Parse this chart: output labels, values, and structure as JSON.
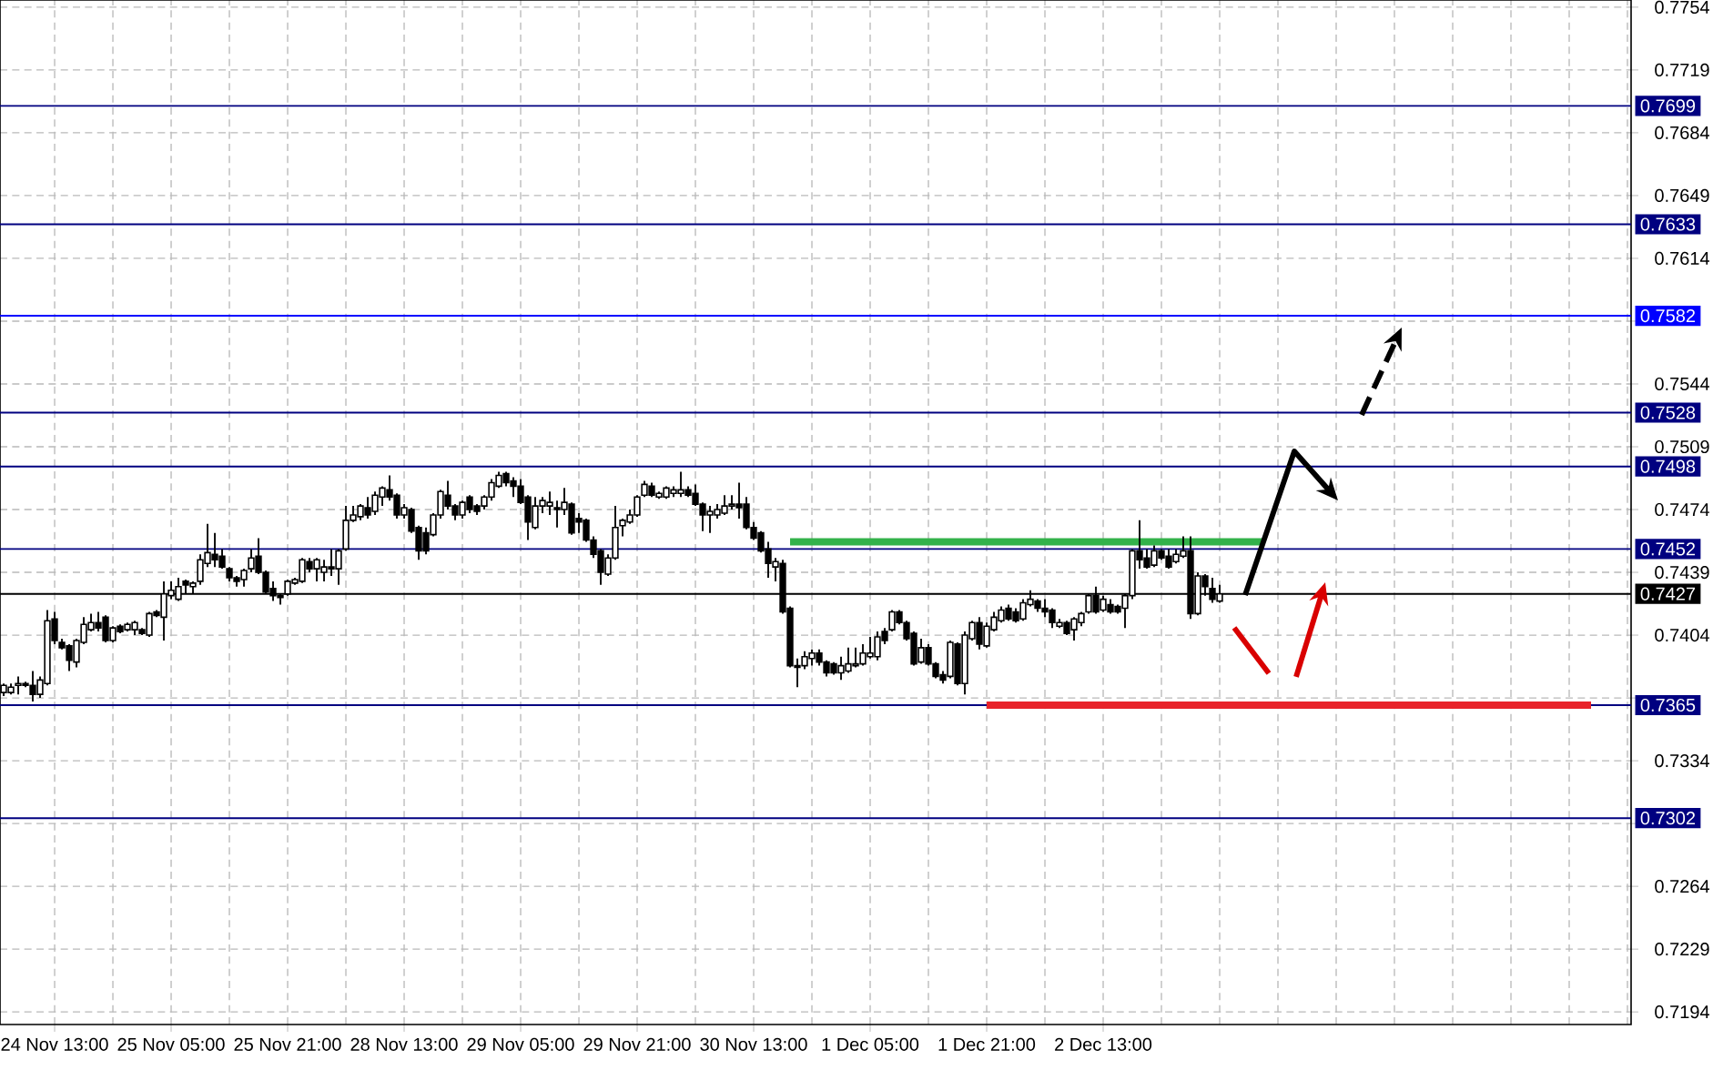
{
  "chart_data": {
    "type": "candlestick",
    "categories": [
      null,
      null,
      null,
      null,
      null,
      null,
      null,
      "24 Nov 13:00",
      null,
      null,
      null,
      null,
      null,
      null,
      null,
      null,
      null,
      null,
      null,
      null,
      null,
      null,
      null,
      "25 Nov 05:00",
      null,
      null,
      null,
      null,
      null,
      null,
      null,
      null,
      null,
      null,
      null,
      null,
      null,
      null,
      null,
      "25 Nov 21:00",
      null,
      null,
      null,
      null,
      null,
      null,
      null,
      null,
      null,
      null,
      null,
      null,
      null,
      null,
      null,
      "28 Nov 13:00",
      null,
      null,
      null,
      null,
      null,
      null,
      null,
      null,
      null,
      null,
      null,
      null,
      null,
      null,
      null,
      "29 Nov 05:00",
      null,
      null,
      null,
      null,
      null,
      null,
      null,
      null,
      null,
      null,
      null,
      null,
      null,
      null,
      null,
      "29 Nov 21:00",
      null,
      null,
      null,
      null,
      null,
      null,
      null,
      null,
      null,
      null,
      null,
      null,
      null,
      null,
      null,
      "30 Nov 13:00",
      null,
      null,
      null,
      null,
      null,
      null,
      null,
      null,
      null,
      null,
      null,
      null,
      null,
      null,
      null,
      "1 Dec 05:00",
      null,
      null,
      null,
      null,
      null,
      null,
      null,
      null,
      null,
      null,
      null,
      null,
      null,
      null,
      null,
      "1 Dec 21:00",
      null,
      null,
      null,
      null,
      null,
      null,
      null,
      null,
      null,
      null,
      null,
      null,
      null,
      null,
      null,
      "2 Dec 13:00",
      null,
      null,
      null,
      null,
      null,
      null,
      null,
      null,
      null,
      null,
      null,
      null,
      null,
      null,
      null,
      null,
      null,
      null,
      null,
      null,
      null,
      null,
      null,
      null,
      null,
      null,
      null,
      null,
      null,
      null,
      null,
      null,
      null,
      null,
      null,
      null,
      null,
      null,
      null,
      null,
      null,
      null,
      null,
      null,
      null,
      null,
      null,
      null,
      null,
      null,
      null,
      null,
      null,
      null,
      null,
      null,
      null,
      null,
      null,
      null,
      null,
      null,
      null,
      null,
      null,
      null,
      null,
      null,
      null,
      null,
      null,
      null
    ],
    "ohlc": [
      [
        0.7372,
        0.7377,
        0.737,
        0.7376
      ],
      [
        0.7372,
        0.7377,
        0.7371,
        0.7375
      ],
      [
        0.7376,
        0.7381,
        0.7371,
        0.7377
      ],
      [
        0.7377,
        0.7378,
        0.7375,
        0.7376
      ],
      [
        0.7376,
        0.7384,
        0.7367,
        0.7371
      ],
      [
        0.7371,
        0.7381,
        0.7369,
        0.7379
      ],
      [
        0.7377,
        0.7418,
        0.7376,
        0.7412
      ],
      [
        0.7413,
        0.7417,
        0.7399,
        0.7401
      ],
      [
        0.74,
        0.7402,
        0.7396,
        0.7397
      ],
      [
        0.7398,
        0.7399,
        0.7384,
        0.739
      ],
      [
        0.7389,
        0.7402,
        0.7386,
        0.7401
      ],
      [
        0.74,
        0.7414,
        0.7399,
        0.741
      ],
      [
        0.7407,
        0.7416,
        0.7406,
        0.7411
      ],
      [
        0.7411,
        0.7417,
        0.7406,
        0.7408
      ],
      [
        0.7414,
        0.7415,
        0.74,
        0.7401
      ],
      [
        0.7401,
        0.7409,
        0.74,
        0.7408
      ],
      [
        0.7409,
        0.741,
        0.7405,
        0.7406
      ],
      [
        0.7407,
        0.7411,
        0.7406,
        0.741
      ],
      [
        0.7407,
        0.7412,
        0.7404,
        0.7411
      ],
      [
        0.7407,
        0.7408,
        0.7404,
        0.7405
      ],
      [
        0.7404,
        0.7417,
        0.7403,
        0.7416
      ],
      [
        0.7417,
        0.7418,
        0.7414,
        0.7415
      ],
      [
        0.7414,
        0.7434,
        0.7401,
        0.7427
      ],
      [
        0.7426,
        0.7434,
        0.7424,
        0.7429
      ],
      [
        0.7424,
        0.7436,
        0.7423,
        0.7431
      ],
      [
        0.7434,
        0.7435,
        0.7427,
        0.7432
      ],
      [
        0.7431,
        0.7434,
        0.7427,
        0.7433
      ],
      [
        0.7434,
        0.7449,
        0.7432,
        0.7446
      ],
      [
        0.7444,
        0.7466,
        0.7442,
        0.745
      ],
      [
        0.7449,
        0.7461,
        0.7442,
        0.7446
      ],
      [
        0.7448,
        0.7452,
        0.7441,
        0.7442
      ],
      [
        0.7441,
        0.7442,
        0.7434,
        0.7436
      ],
      [
        0.7436,
        0.7437,
        0.7431,
        0.7434
      ],
      [
        0.7435,
        0.7441,
        0.7431,
        0.744
      ],
      [
        0.7441,
        0.7452,
        0.7439,
        0.7447
      ],
      [
        0.7448,
        0.7458,
        0.7438,
        0.7439
      ],
      [
        0.7439,
        0.744,
        0.7427,
        0.7428
      ],
      [
        0.743,
        0.7434,
        0.7423,
        0.7426
      ],
      [
        0.7426,
        0.7427,
        0.7421,
        0.7425
      ],
      [
        0.7427,
        0.7435,
        0.7426,
        0.7434
      ],
      [
        0.7433,
        0.7436,
        0.7432,
        0.7435
      ],
      [
        0.7434,
        0.7447,
        0.7433,
        0.7446
      ],
      [
        0.7445,
        0.7447,
        0.7439,
        0.7441
      ],
      [
        0.7441,
        0.7447,
        0.7434,
        0.7446
      ],
      [
        0.7439,
        0.7446,
        0.7434,
        0.7442
      ],
      [
        0.7442,
        0.7452,
        0.7437,
        0.7441
      ],
      [
        0.7441,
        0.7452,
        0.7432,
        0.7451
      ],
      [
        0.7452,
        0.7476,
        0.7451,
        0.7468
      ],
      [
        0.7468,
        0.7476,
        0.7467,
        0.7471
      ],
      [
        0.747,
        0.7477,
        0.7468,
        0.7476
      ],
      [
        0.7475,
        0.7481,
        0.7469,
        0.7471
      ],
      [
        0.7473,
        0.7484,
        0.7471,
        0.7482
      ],
      [
        0.7481,
        0.7487,
        0.7476,
        0.7486
      ],
      [
        0.7485,
        0.7493,
        0.7479,
        0.7481
      ],
      [
        0.7482,
        0.7483,
        0.7469,
        0.7471
      ],
      [
        0.7471,
        0.7477,
        0.7469,
        0.7475
      ],
      [
        0.7474,
        0.7475,
        0.7461,
        0.7462
      ],
      [
        0.7464,
        0.7465,
        0.7446,
        0.7451
      ],
      [
        0.7461,
        0.7464,
        0.7449,
        0.7451
      ],
      [
        0.746,
        0.7472,
        0.7459,
        0.7471
      ],
      [
        0.7471,
        0.7485,
        0.7469,
        0.7484
      ],
      [
        0.7482,
        0.749,
        0.7474,
        0.7476
      ],
      [
        0.7476,
        0.7477,
        0.7468,
        0.7471
      ],
      [
        0.7471,
        0.7479,
        0.7469,
        0.7478
      ],
      [
        0.7481,
        0.7482,
        0.7472,
        0.7474
      ],
      [
        0.7476,
        0.7477,
        0.7471,
        0.7473
      ],
      [
        0.7476,
        0.7482,
        0.7474,
        0.7481
      ],
      [
        0.7481,
        0.7491,
        0.7479,
        0.7489
      ],
      [
        0.7487,
        0.7495,
        0.7486,
        0.7493
      ],
      [
        0.7494,
        0.7495,
        0.7487,
        0.7489
      ],
      [
        0.749,
        0.7492,
        0.7481,
        0.7487
      ],
      [
        0.7487,
        0.7491,
        0.7477,
        0.7478
      ],
      [
        0.7481,
        0.7482,
        0.7457,
        0.7467
      ],
      [
        0.7464,
        0.7481,
        0.7463,
        0.7476
      ],
      [
        0.7476,
        0.7481,
        0.7472,
        0.7479
      ],
      [
        0.7476,
        0.7484,
        0.7471,
        0.7478
      ],
      [
        0.7475,
        0.7479,
        0.7464,
        0.7474
      ],
      [
        0.7474,
        0.7486,
        0.7471,
        0.7478
      ],
      [
        0.7477,
        0.7478,
        0.746,
        0.7461
      ],
      [
        0.7469,
        0.7472,
        0.7461,
        0.7467
      ],
      [
        0.7468,
        0.7469,
        0.7456,
        0.7457
      ],
      [
        0.7457,
        0.7459,
        0.7447,
        0.7449
      ],
      [
        0.7451,
        0.7452,
        0.7432,
        0.7439
      ],
      [
        0.7438,
        0.7449,
        0.7437,
        0.7447
      ],
      [
        0.7447,
        0.7476,
        0.7446,
        0.7464
      ],
      [
        0.7465,
        0.7469,
        0.7459,
        0.7468
      ],
      [
        0.7467,
        0.7474,
        0.7466,
        0.7471
      ],
      [
        0.7471,
        0.7482,
        0.747,
        0.7481
      ],
      [
        0.7482,
        0.749,
        0.7481,
        0.7488
      ],
      [
        0.7487,
        0.7489,
        0.7481,
        0.7482
      ],
      [
        0.7481,
        0.7484,
        0.748,
        0.7483
      ],
      [
        0.7481,
        0.7487,
        0.748,
        0.7486
      ],
      [
        0.7483,
        0.7487,
        0.7481,
        0.7485
      ],
      [
        0.7483,
        0.7495,
        0.7481,
        0.7485
      ],
      [
        0.7485,
        0.7487,
        0.7481,
        0.7482
      ],
      [
        0.7483,
        0.7488,
        0.7476,
        0.7477
      ],
      [
        0.7477,
        0.7478,
        0.7462,
        0.7471
      ],
      [
        0.7471,
        0.7476,
        0.7461,
        0.7473
      ],
      [
        0.7471,
        0.7477,
        0.7469,
        0.7474
      ],
      [
        0.7472,
        0.7482,
        0.7471,
        0.7476
      ],
      [
        0.7476,
        0.7482,
        0.7474,
        0.7477
      ],
      [
        0.7477,
        0.7489,
        0.7469,
        0.7475
      ],
      [
        0.7477,
        0.7481,
        0.7463,
        0.7464
      ],
      [
        0.7464,
        0.7467,
        0.7457,
        0.7458
      ],
      [
        0.7461,
        0.7462,
        0.745,
        0.7451
      ],
      [
        0.7452,
        0.7456,
        0.7436,
        0.7444
      ],
      [
        0.7442,
        0.7447,
        0.7434,
        0.7445
      ],
      [
        0.7444,
        0.7446,
        0.7416,
        0.7417
      ],
      [
        0.7419,
        0.742,
        0.7386,
        0.7387
      ],
      [
        0.7387,
        0.7391,
        0.7375,
        0.7386
      ],
      [
        0.7387,
        0.7395,
        0.7385,
        0.7392
      ],
      [
        0.7391,
        0.7396,
        0.7387,
        0.7394
      ],
      [
        0.7394,
        0.7396,
        0.7387,
        0.7389
      ],
      [
        0.7389,
        0.739,
        0.7381,
        0.7383
      ],
      [
        0.7388,
        0.7389,
        0.7382,
        0.7383
      ],
      [
        0.7383,
        0.7392,
        0.7379,
        0.7387
      ],
      [
        0.7384,
        0.7397,
        0.7383,
        0.7388
      ],
      [
        0.7387,
        0.7397,
        0.7386,
        0.7388
      ],
      [
        0.7388,
        0.7399,
        0.7387,
        0.7394
      ],
      [
        0.7392,
        0.7403,
        0.7391,
        0.7394
      ],
      [
        0.7392,
        0.7406,
        0.739,
        0.7403
      ],
      [
        0.7406,
        0.7408,
        0.7399,
        0.7401
      ],
      [
        0.7407,
        0.7418,
        0.7406,
        0.7417
      ],
      [
        0.7417,
        0.7418,
        0.741,
        0.7411
      ],
      [
        0.7411,
        0.7412,
        0.7401,
        0.7402
      ],
      [
        0.7405,
        0.7406,
        0.7387,
        0.7388
      ],
      [
        0.7389,
        0.7402,
        0.7388,
        0.7397
      ],
      [
        0.7397,
        0.7399,
        0.7387,
        0.7388
      ],
      [
        0.7388,
        0.7389,
        0.738,
        0.7381
      ],
      [
        0.7382,
        0.7384,
        0.7377,
        0.7379
      ],
      [
        0.7381,
        0.7401,
        0.738,
        0.74
      ],
      [
        0.7399,
        0.74,
        0.7376,
        0.7377
      ],
      [
        0.7377,
        0.7406,
        0.7371,
        0.7404
      ],
      [
        0.7402,
        0.7412,
        0.7401,
        0.7411
      ],
      [
        0.7411,
        0.7414,
        0.7396,
        0.7399
      ],
      [
        0.7398,
        0.7411,
        0.7397,
        0.7409
      ],
      [
        0.7407,
        0.7417,
        0.7406,
        0.7414
      ],
      [
        0.7412,
        0.742,
        0.7411,
        0.7418
      ],
      [
        0.7419,
        0.7421,
        0.7412,
        0.7413
      ],
      [
        0.7417,
        0.7419,
        0.7411,
        0.7412
      ],
      [
        0.7413,
        0.7424,
        0.7412,
        0.7422
      ],
      [
        0.7421,
        0.7429,
        0.742,
        0.7424
      ],
      [
        0.7423,
        0.7424,
        0.7417,
        0.7419
      ],
      [
        0.7419,
        0.7424,
        0.7414,
        0.7417
      ],
      [
        0.7418,
        0.7419,
        0.7408,
        0.7411
      ],
      [
        0.7409,
        0.7413,
        0.7408,
        0.7411
      ],
      [
        0.7411,
        0.7412,
        0.7404,
        0.7405
      ],
      [
        0.7407,
        0.7414,
        0.7401,
        0.7413
      ],
      [
        0.7411,
        0.7417,
        0.7409,
        0.7416
      ],
      [
        0.7417,
        0.7427,
        0.7416,
        0.7426
      ],
      [
        0.7426,
        0.7431,
        0.7416,
        0.7417
      ],
      [
        0.7418,
        0.7426,
        0.7417,
        0.7424
      ],
      [
        0.7421,
        0.7424,
        0.7416,
        0.7417
      ],
      [
        0.742,
        0.7421,
        0.7416,
        0.7417
      ],
      [
        0.7419,
        0.7427,
        0.7408,
        0.7426
      ],
      [
        0.7426,
        0.7452,
        0.7424,
        0.7451
      ],
      [
        0.7451,
        0.7468,
        0.7441,
        0.7446
      ],
      [
        0.7447,
        0.7452,
        0.7441,
        0.7442
      ],
      [
        0.7443,
        0.7454,
        0.7442,
        0.7451
      ],
      [
        0.7451,
        0.7452,
        0.7446,
        0.7447
      ],
      [
        0.7448,
        0.7452,
        0.7441,
        0.7442
      ],
      [
        0.7445,
        0.7452,
        0.7444,
        0.7449
      ],
      [
        0.7448,
        0.7459,
        0.7447,
        0.7451
      ],
      [
        0.7451,
        0.7459,
        0.7413,
        0.7416
      ],
      [
        0.7416,
        0.7439,
        0.7415,
        0.7437
      ],
      [
        0.7437,
        0.7438,
        0.7426,
        0.7431
      ],
      [
        0.743,
        0.7436,
        0.7422,
        0.7424
      ],
      [
        0.7423,
        0.7432,
        0.7422,
        0.7427
      ],
      null,
      null,
      null,
      null,
      null,
      null,
      null,
      null,
      null,
      null,
      null,
      null,
      null,
      null,
      null,
      null,
      null,
      null,
      null,
      null,
      null,
      null,
      null,
      null,
      null,
      null,
      null,
      null,
      null,
      null,
      null,
      null,
      null,
      null,
      null,
      null,
      null,
      null,
      null,
      null,
      null,
      null,
      null,
      null,
      null,
      null,
      null,
      null,
      null,
      null,
      null,
      null,
      null,
      null,
      null,
      null
    ],
    "series": [
      {
        "type": "line",
        "color": "#33b24a",
        "values": [
          null,
          null,
          null,
          null,
          null,
          null,
          null,
          null,
          null,
          null,
          null,
          null,
          null,
          null,
          null,
          null,
          null,
          null,
          null,
          null,
          null,
          null,
          null,
          null,
          null,
          null,
          null,
          null,
          null,
          null,
          null,
          null,
          null,
          null,
          null,
          null,
          null,
          null,
          null,
          null,
          null,
          null,
          null,
          null,
          null,
          null,
          null,
          null,
          null,
          null,
          null,
          null,
          null,
          null,
          null,
          null,
          null,
          null,
          null,
          null,
          null,
          null,
          null,
          null,
          null,
          null,
          null,
          null,
          null,
          null,
          null,
          null,
          null,
          null,
          null,
          null,
          null,
          null,
          null,
          null,
          null,
          null,
          null,
          null,
          null,
          null,
          null,
          null,
          null,
          null,
          null,
          null,
          null,
          null,
          null,
          null,
          null,
          null,
          null,
          null,
          null,
          null,
          null,
          null,
          null,
          null,
          null,
          null,
          0.7456,
          0.7456,
          0.7456,
          0.7456,
          0.7456,
          0.7456,
          0.7456,
          0.7456,
          0.7456,
          0.7456,
          0.7456,
          0.7456,
          0.7456,
          0.7456,
          0.7456,
          0.7456,
          0.7456,
          0.7456,
          0.7456,
          0.7456,
          0.7456,
          0.7456,
          0.7456,
          0.7456,
          0.7456,
          0.7456,
          0.7456,
          0.7456,
          0.7456,
          0.7456,
          0.7456,
          0.7456,
          0.7456,
          0.7456,
          0.7456,
          0.7456,
          0.7456,
          0.7456,
          0.7456,
          0.7456,
          0.7456,
          0.7456,
          0.7456,
          0.7456,
          0.7456,
          0.7456,
          0.7456,
          0.7456,
          0.7456,
          0.7456,
          0.7456,
          0.7456,
          0.7456,
          0.7456,
          0.7456,
          0.7456,
          0.7456,
          0.7456,
          0.7456,
          0.7456,
          0.7456,
          0.7456,
          0.7456,
          0.7456,
          0.7456,
          0.7456,
          null,
          null,
          null,
          null,
          null,
          null,
          null,
          null,
          null,
          null,
          null,
          null,
          null,
          null,
          null,
          null,
          null,
          null,
          null,
          null,
          null,
          null,
          null,
          null,
          null,
          null,
          null,
          null,
          null,
          null,
          null,
          null,
          null,
          null,
          null,
          null,
          null,
          null,
          null,
          null,
          null,
          null,
          null,
          null,
          null,
          null,
          null,
          null,
          null,
          null
        ]
      },
      {
        "type": "line",
        "color": "#e8232a",
        "values": [
          null,
          null,
          null,
          null,
          null,
          null,
          null,
          null,
          null,
          null,
          null,
          null,
          null,
          null,
          null,
          null,
          null,
          null,
          null,
          null,
          null,
          null,
          null,
          null,
          null,
          null,
          null,
          null,
          null,
          null,
          null,
          null,
          null,
          null,
          null,
          null,
          null,
          null,
          null,
          null,
          null,
          null,
          null,
          null,
          null,
          null,
          null,
          null,
          null,
          null,
          null,
          null,
          null,
          null,
          null,
          null,
          null,
          null,
          null,
          null,
          null,
          null,
          null,
          null,
          null,
          null,
          null,
          null,
          null,
          null,
          null,
          null,
          null,
          null,
          null,
          null,
          null,
          null,
          null,
          null,
          null,
          null,
          null,
          null,
          null,
          null,
          null,
          null,
          null,
          null,
          null,
          null,
          null,
          null,
          null,
          null,
          null,
          null,
          null,
          null,
          null,
          null,
          null,
          null,
          null,
          null,
          null,
          null,
          null,
          null,
          null,
          null,
          null,
          null,
          null,
          null,
          null,
          null,
          null,
          null,
          null,
          null,
          null,
          null,
          null,
          null,
          null,
          null,
          null,
          null,
          null,
          null,
          null,
          null,
          null,
          0.7365,
          0.7365,
          0.7365,
          0.7365,
          0.7365,
          0.7365,
          0.7365,
          0.7365,
          0.7365,
          0.7365,
          0.7365,
          0.7365,
          0.7365,
          0.7365,
          0.7365,
          0.7365,
          0.7365,
          0.7365,
          0.7365,
          0.7365,
          0.7365,
          0.7365,
          0.7365,
          0.7365,
          0.7365,
          0.7365,
          0.7365,
          0.7365,
          0.7365,
          0.7365,
          0.7365,
          0.7365,
          0.7365,
          0.7365,
          0.7365,
          0.7365,
          0.7365,
          0.7365,
          0.7365,
          0.7365,
          0.7365,
          0.7365,
          0.7365,
          0.7365,
          0.7365,
          0.7365,
          0.7365,
          0.7365,
          0.7365,
          0.7365,
          0.7365,
          0.7365,
          0.7365,
          0.7365,
          0.7365,
          0.7365,
          0.7365,
          0.7365,
          0.7365,
          0.7365,
          0.7365,
          0.7365,
          0.7365,
          0.7365,
          0.7365,
          0.7365,
          0.7365,
          0.7365,
          0.7365,
          0.7365,
          0.7365,
          0.7365,
          0.7365,
          0.7365,
          0.7365,
          0.7365,
          0.7365,
          0.7365,
          0.7365,
          0.7365,
          0.7365,
          0.7365,
          0.7365,
          0.7365,
          null,
          null,
          null,
          null,
          null
        ]
      }
    ],
    "ylim": [
      0.7187,
      0.7758
    ],
    "yticks": [
      0.7194,
      0.7229,
      0.7264,
      {
        "value": 0.7299,
        "label": null
      },
      0.7334,
      {
        "value": 0.7369,
        "label": null
      },
      0.7404,
      0.7439,
      0.7474,
      0.7509,
      0.7544,
      {
        "value": 0.7579,
        "label": null
      },
      0.7614,
      0.7649,
      0.7684,
      0.7719,
      0.7754
    ],
    "grid": true,
    "ref_lines": [
      {
        "axis": "y",
        "value": 0.7699,
        "label": "0.7699",
        "color": "#000080"
      },
      {
        "axis": "y",
        "value": 0.7633,
        "label": "0.7633",
        "color": "#000080"
      },
      {
        "axis": "y",
        "value": 0.7582,
        "label": "0.7582",
        "color": "#0000ff"
      },
      {
        "axis": "y",
        "value": 0.7528,
        "label": "0.7528",
        "color": "#000080"
      },
      {
        "axis": "y",
        "value": 0.7498,
        "label": "0.7498",
        "color": "#000080"
      },
      {
        "axis": "y",
        "value": 0.7452,
        "label": "0.7452",
        "color": "#000080"
      },
      {
        "axis": "y",
        "value": 0.7427,
        "label": "0.7427",
        "color": "#000000"
      },
      {
        "axis": "y",
        "value": 0.7365,
        "label": "0.7365",
        "color": "#000080"
      },
      {
        "axis": "y",
        "value": 0.7302,
        "label": "0.7302",
        "color": "#000080"
      }
    ]
  }
}
